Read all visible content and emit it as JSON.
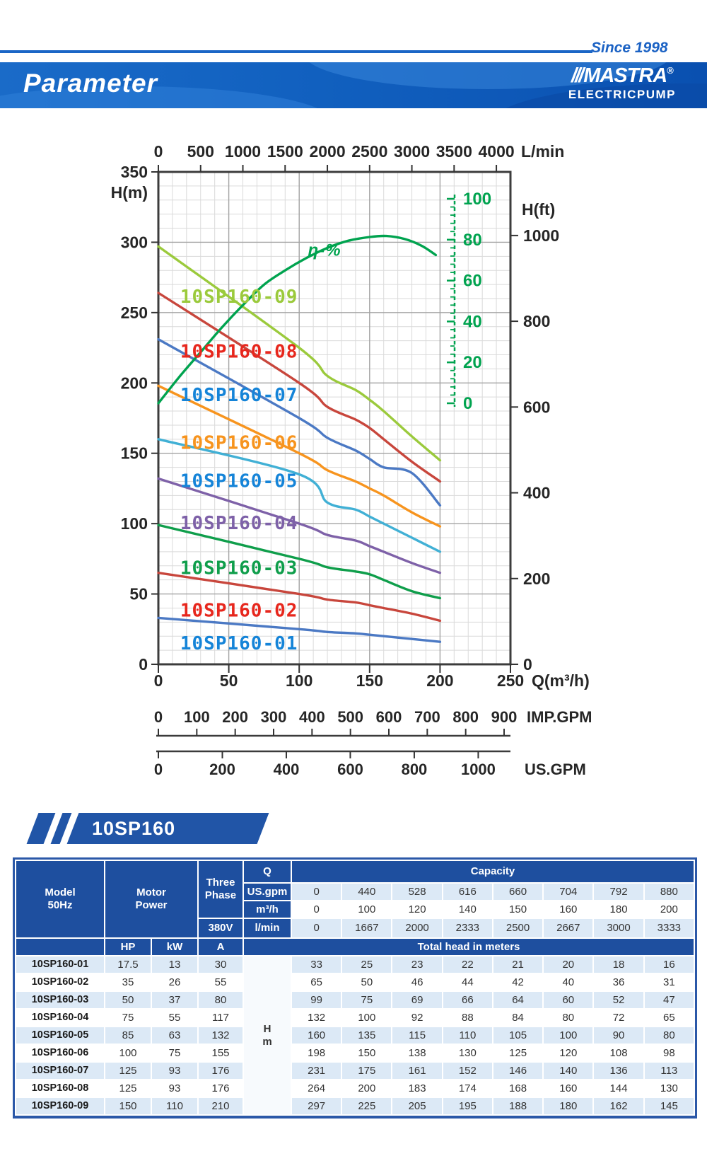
{
  "header": {
    "since": "Since 1998",
    "title": "Parameter",
    "brand_slashes": "///",
    "brand": "MASTRA",
    "registered": "®",
    "brand_sub": "ELECTRICPUMP"
  },
  "model_banner": "10SP160",
  "chart_data": {
    "type": "line",
    "title": "10SP160 pump performance curves",
    "top_axis": {
      "label": "L/min",
      "ticks": [
        0,
        500,
        1000,
        1500,
        2000,
        2500,
        3000,
        3500,
        4000
      ]
    },
    "bottom_axis": {
      "label": "Q(m³/h)",
      "ticks": [
        0,
        50,
        100,
        150,
        200,
        250
      ],
      "range": [
        0,
        250
      ]
    },
    "left_axis": {
      "label": "H(m)",
      "ticks": [
        0,
        50,
        100,
        150,
        200,
        250,
        300,
        350
      ],
      "range": [
        0,
        350
      ]
    },
    "right_axis": {
      "label": "H(ft)",
      "ticks": [
        0,
        200,
        400,
        600,
        800,
        1000
      ]
    },
    "efficiency_axis": {
      "label": "η-%",
      "ticks": [
        0,
        20,
        40,
        60,
        80,
        100
      ],
      "range": [
        0,
        100
      ]
    },
    "imp_gpm_axis": {
      "label": "IMP.GPM",
      "ticks": [
        0,
        100,
        200,
        300,
        400,
        500,
        600,
        700,
        800,
        900
      ]
    },
    "us_gpm_axis": {
      "label": "US.GPM",
      "ticks": [
        0,
        200,
        400,
        600,
        800,
        1000
      ]
    },
    "grid": true,
    "q_points": [
      0,
      100,
      120,
      140,
      150,
      160,
      180,
      200
    ],
    "series": [
      {
        "name": "10SP160-09",
        "color": "#9bca3c",
        "label_color": "#9bca3c",
        "values": [
          297,
          225,
          205,
          195,
          188,
          180,
          162,
          145
        ],
        "label_at": [
          15.5,
          257
        ]
      },
      {
        "name": "10SP160-08",
        "color": "#c8463c",
        "label_color": "#e7271d",
        "values": [
          264,
          200,
          183,
          174,
          168,
          160,
          144,
          130
        ],
        "label_at": [
          15.5,
          218
        ]
      },
      {
        "name": "10SP160-07",
        "color": "#4b79c4",
        "label_color": "#1584d8",
        "values": [
          231,
          175,
          161,
          152,
          146,
          140,
          136,
          113
        ],
        "label_at": [
          15.5,
          187
        ]
      },
      {
        "name": "10SP160-06",
        "color": "#f7941e",
        "label_color": "#f7941e",
        "values": [
          198,
          150,
          138,
          130,
          125,
          120,
          108,
          98
        ],
        "label_at": [
          15.5,
          153
        ]
      },
      {
        "name": "10SP160-05",
        "color": "#41b0d5",
        "label_color": "#1584d8",
        "values": [
          160,
          135,
          115,
          110,
          105,
          100,
          90,
          80
        ],
        "label_at": [
          15.5,
          126
        ]
      },
      {
        "name": "10SP160-04",
        "color": "#7e61a8",
        "label_color": "#7e61a8",
        "values": [
          132,
          100,
          92,
          88,
          84,
          80,
          72,
          65
        ],
        "label_at": [
          15.5,
          96
        ]
      },
      {
        "name": "10SP160-03",
        "color": "#0f9e4b",
        "label_color": "#0f9e4b",
        "values": [
          99,
          75,
          69,
          66,
          64,
          60,
          52,
          47
        ],
        "label_at": [
          15.5,
          64
        ]
      },
      {
        "name": "10SP160-02",
        "color": "#c8463c",
        "label_color": "#e7271d",
        "values": [
          65,
          50,
          46,
          44,
          42,
          40,
          36,
          31
        ],
        "label_at": [
          15.5,
          34
        ]
      },
      {
        "name": "10SP160-01",
        "color": "#4b79c4",
        "label_color": "#1584d8",
        "values": [
          33,
          25,
          23,
          22,
          21,
          20,
          18,
          16
        ],
        "label_at": [
          15.5,
          10.5
        ]
      }
    ],
    "efficiency_curve": {
      "label": "η-%",
      "color": "#00a34f",
      "points": [
        [
          0,
          0
        ],
        [
          15,
          13
        ],
        [
          30,
          25
        ],
        [
          45,
          37
        ],
        [
          60,
          48
        ],
        [
          75,
          58
        ],
        [
          90,
          65
        ],
        [
          105,
          71
        ],
        [
          120,
          76
        ],
        [
          135,
          79.5
        ],
        [
          150,
          81.3
        ],
        [
          162,
          81.8
        ],
        [
          175,
          80.3
        ],
        [
          187,
          77
        ],
        [
          197,
          72.5
        ]
      ],
      "label_at": [
        118,
        75
      ]
    }
  },
  "table": {
    "model_header": [
      "Model",
      "50Hz"
    ],
    "motor_header": [
      "Motor",
      "Power"
    ],
    "three_phase": [
      "Three",
      "Phase"
    ],
    "voltage": "380V",
    "q_label": "Q",
    "capacity_label": "Capacity",
    "unit_rows": [
      {
        "label": "US.gpm",
        "values": [
          "0",
          "440",
          "528",
          "616",
          "660",
          "704",
          "792",
          "880"
        ]
      },
      {
        "label": "m³/h",
        "values": [
          "0",
          "100",
          "120",
          "140",
          "150",
          "160",
          "180",
          "200"
        ]
      },
      {
        "label": "l/min",
        "values": [
          "0",
          "1667",
          "2000",
          "2333",
          "2500",
          "2667",
          "3000",
          "3333"
        ]
      }
    ],
    "power_headers": [
      "HP",
      "kW",
      "A"
    ],
    "total_head_label": "Total head in meters",
    "hm_label": [
      "H",
      "m"
    ],
    "rows": [
      {
        "model": "10SP160-01",
        "hp": "17.5",
        "kw": "13",
        "a": "30",
        "heads": [
          "33",
          "25",
          "23",
          "22",
          "21",
          "20",
          "18",
          "16"
        ]
      },
      {
        "model": "10SP160-02",
        "hp": "35",
        "kw": "26",
        "a": "55",
        "heads": [
          "65",
          "50",
          "46",
          "44",
          "42",
          "40",
          "36",
          "31"
        ]
      },
      {
        "model": "10SP160-03",
        "hp": "50",
        "kw": "37",
        "a": "80",
        "heads": [
          "99",
          "75",
          "69",
          "66",
          "64",
          "60",
          "52",
          "47"
        ]
      },
      {
        "model": "10SP160-04",
        "hp": "75",
        "kw": "55",
        "a": "117",
        "heads": [
          "132",
          "100",
          "92",
          "88",
          "84",
          "80",
          "72",
          "65"
        ]
      },
      {
        "model": "10SP160-05",
        "hp": "85",
        "kw": "63",
        "a": "132",
        "heads": [
          "160",
          "135",
          "115",
          "110",
          "105",
          "100",
          "90",
          "80"
        ]
      },
      {
        "model": "10SP160-06",
        "hp": "100",
        "kw": "75",
        "a": "155",
        "heads": [
          "198",
          "150",
          "138",
          "130",
          "125",
          "120",
          "108",
          "98"
        ]
      },
      {
        "model": "10SP160-07",
        "hp": "125",
        "kw": "93",
        "a": "176",
        "heads": [
          "231",
          "175",
          "161",
          "152",
          "146",
          "140",
          "136",
          "113"
        ]
      },
      {
        "model": "10SP160-08",
        "hp": "125",
        "kw": "93",
        "a": "176",
        "heads": [
          "264",
          "200",
          "183",
          "174",
          "168",
          "160",
          "144",
          "130"
        ]
      },
      {
        "model": "10SP160-09",
        "hp": "150",
        "kw": "110",
        "a": "210",
        "heads": [
          "297",
          "225",
          "205",
          "195",
          "188",
          "180",
          "162",
          "145"
        ]
      }
    ]
  }
}
